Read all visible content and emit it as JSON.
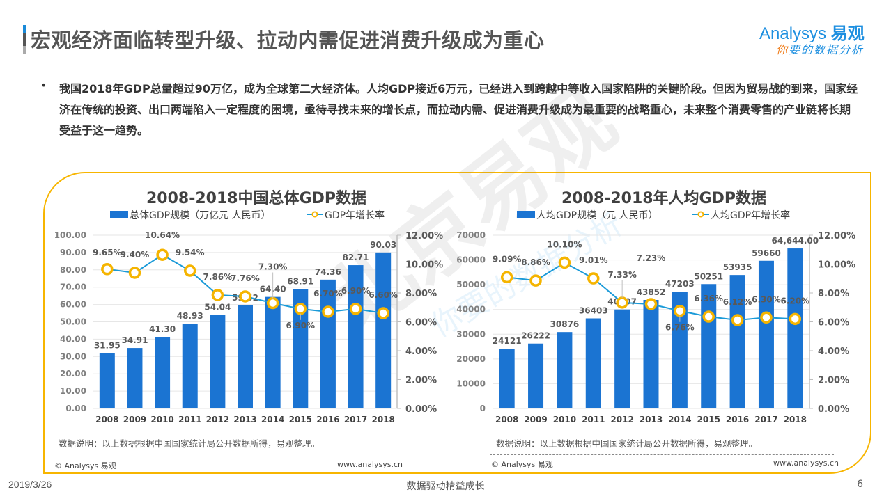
{
  "page": {
    "title": "宏观经济面临转型升级、拉动内需促进消费升级成为重心",
    "logo_main": "Analysys",
    "logo_main_cn": "易观",
    "logo_sub_first": "你",
    "logo_sub_rest": "要的数据分析",
    "bullet": "•",
    "summary": "我国2018年GDP总量超过90万亿，成为全球第二大经济体。人均GDP接近6万元，已经进入到跨越中等收入国家陷阱的关键阶段。但因为贸易战的到来，国家经济在传统的投资、出口两端陷入一定程度的困境，亟待寻找未来的增长点，而拉动内需、促进消费升级成为最重要的战略重心，未来整个消费零售的产业链将长期受益于这一趋势。",
    "watermark": "北京易观",
    "watermark_sub": "你要的数据分析",
    "footer_date": "2019/3/26",
    "footer_center": "数据驱动精益成长",
    "footer_page": "6"
  },
  "left_panel": {
    "note": "数据说明：以上数据根据中国国家统计局公开数据所得，易观整理。",
    "copyright": "© Analysys 易观",
    "site": "www.analysys.cn"
  },
  "right_panel": {
    "note": "数据说明：以上数据根据中国国家统计局公开数据所得，易观整理。",
    "copyright": "© Analysys 易观",
    "site": "www.analysys.cn"
  },
  "colors": {
    "bar": "#1b74d2",
    "line": "#1a9ad8",
    "marker_stroke": "#f5b400",
    "frame": "#f7b500",
    "axis_text": "#7f7f7f",
    "label_text": "#595959"
  },
  "chart_data": [
    {
      "type": "bar",
      "title": "2008-2018中国总体GDP数据",
      "categories": [
        "2008",
        "2009",
        "2010",
        "2011",
        "2012",
        "2013",
        "2014",
        "2015",
        "2016",
        "2017",
        "2018"
      ],
      "series": [
        {
          "name": "总体GDP规模（万亿元 人民币）",
          "kind": "bar",
          "axis": "left",
          "values": [
            31.95,
            34.91,
            41.3,
            48.93,
            54.04,
            59.52,
            64.4,
            68.91,
            74.36,
            82.71,
            90.03
          ],
          "labels": [
            "31.95",
            "34.91",
            "41.30",
            "48.93",
            "54.04",
            "59.52",
            "64.40",
            "68.91",
            "74.36",
            "82.71",
            "90.03"
          ]
        },
        {
          "name": "GDP年增长率",
          "kind": "line",
          "axis": "right",
          "values": [
            9.65,
            9.4,
            10.64,
            9.54,
            7.86,
            7.76,
            7.3,
            6.9,
            6.7,
            6.9,
            6.6
          ],
          "labels": [
            "9.65%",
            "9.40%",
            "10.64%",
            "9.54%",
            "7.86%",
            "7.76%",
            "7.30%",
            "6.90%",
            "6.70%",
            "6.90%",
            "6.60%"
          ]
        }
      ],
      "ylim_left": [
        0,
        100
      ],
      "yticks_left": [
        "0.00",
        "10.00",
        "20.00",
        "30.00",
        "40.00",
        "50.00",
        "60.00",
        "70.00",
        "80.00",
        "90.00",
        "100.00"
      ],
      "ylim_right": [
        0,
        12
      ],
      "yticks_right": [
        "0.00%",
        "2.00%",
        "4.00%",
        "6.00%",
        "8.00%",
        "10.00%",
        "12.00%"
      ],
      "grid": true,
      "legend": "top-center"
    },
    {
      "type": "bar",
      "title": "2008-2018年人均GDP数据",
      "categories": [
        "2008",
        "2009",
        "2010",
        "2011",
        "2012",
        "2013",
        "2014",
        "2015",
        "2016",
        "2017",
        "2018"
      ],
      "series": [
        {
          "name": "人均GDP规模（元 人民币）",
          "kind": "bar",
          "axis": "left",
          "values": [
            24121,
            26222,
            30876,
            36403,
            40007,
            43852,
            47203,
            50251,
            53935,
            59660,
            64644
          ],
          "labels": [
            "24121",
            "26222",
            "30876",
            "36403",
            "40007",
            "43852",
            "47203",
            "50251",
            "53935",
            "59660",
            "64,644.00"
          ]
        },
        {
          "name": "人均GDP年增长率",
          "kind": "line",
          "axis": "right",
          "values": [
            9.09,
            8.86,
            10.1,
            9.01,
            7.33,
            7.23,
            6.76,
            6.36,
            6.12,
            6.3,
            6.2
          ],
          "labels": [
            "9.09%",
            "8.86%",
            "10.10%",
            "9.01%",
            "7.33%",
            "7.23%",
            "6.76%",
            "6.36%",
            "6.12%",
            "6.30%",
            "6.20%"
          ]
        }
      ],
      "ylim_left": [
        0,
        70000
      ],
      "yticks_left": [
        "0",
        "10000",
        "20000",
        "30000",
        "40000",
        "50000",
        "60000",
        "70000"
      ],
      "ylim_right": [
        0,
        12
      ],
      "yticks_right": [
        "0.00%",
        "2.00%",
        "4.00%",
        "6.00%",
        "8.00%",
        "10.00%",
        "12.00%"
      ],
      "grid": true,
      "legend": "top-center"
    }
  ]
}
